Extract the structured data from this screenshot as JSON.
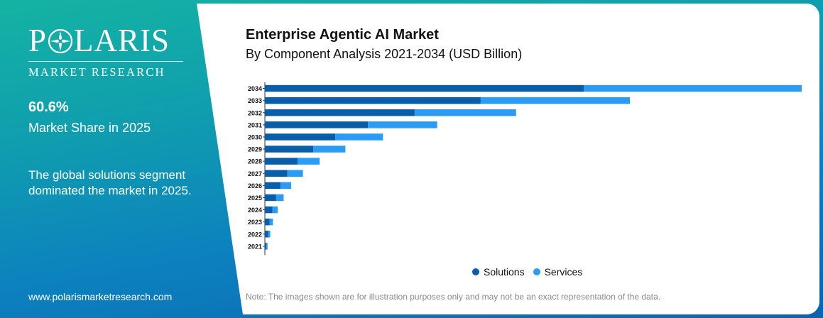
{
  "brand": {
    "logo_text_1": "P",
    "logo_text_2": "LARIS",
    "logo_sub": "MARKET RESEARCH",
    "accent_color": "#ffffff"
  },
  "sidebar": {
    "stat_value": "60.6%",
    "stat_label": "Market Share in 2025",
    "description": "The global solutions segment dominated the market in 2025.",
    "website": "www.polarismarketresearch.com"
  },
  "note": "Note: The images shown are for illustration purposes only and may not be an exact representation of the data.",
  "chart_data": {
    "type": "bar",
    "orientation": "horizontal",
    "stacked": true,
    "title": "Enterprise Agentic AI Market",
    "subtitle": "By Component Analysis 2021-2034 (USD Billion)",
    "xlabel": "",
    "ylabel": "",
    "categories": [
      "2034",
      "2033",
      "2032",
      "2031",
      "2030",
      "2029",
      "2028",
      "2027",
      "2026",
      "2025",
      "2024",
      "2023",
      "2022",
      "2021"
    ],
    "series": [
      {
        "name": "Solutions",
        "color": "#0a5ea8",
        "values": [
          59.4,
          40.2,
          27.9,
          19.2,
          13.1,
          9.0,
          6.1,
          4.2,
          2.9,
          2.1,
          1.4,
          0.9,
          0.6,
          0.3
        ]
      },
      {
        "name": "Services",
        "color": "#2b9bf4",
        "values": [
          40.6,
          27.8,
          18.9,
          12.9,
          8.9,
          6.0,
          4.1,
          2.9,
          2.0,
          1.4,
          1.0,
          0.6,
          0.4,
          0.2
        ]
      }
    ],
    "xlim": [
      0,
      100
    ],
    "grid": false,
    "axis_labels_shown": false,
    "legend_position": "bottom"
  }
}
